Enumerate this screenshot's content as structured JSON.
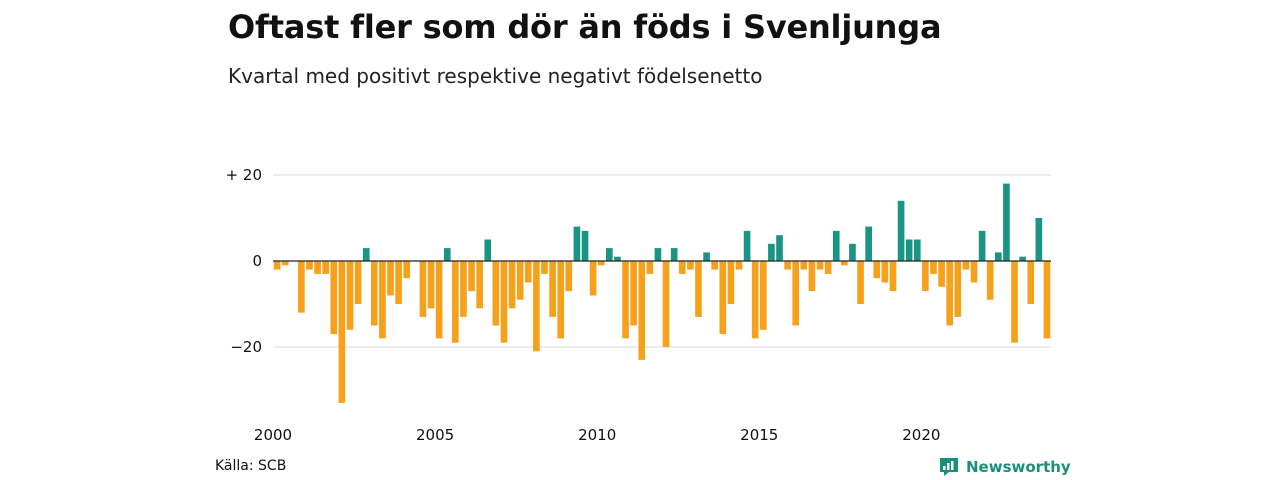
{
  "header": {
    "title": "Oftast fler som dör än föds i Svenljunga",
    "subtitle": "Kvartal med positivt respektive negativt födelsenetto"
  },
  "footer": {
    "source": "Källa: SCB",
    "brand": "Newsworthy"
  },
  "colors": {
    "positive": "#1a9584",
    "negative": "#f5a11c",
    "grid": "#d9d9d9",
    "zero_line": "#222222",
    "brand": "#1a8f7c"
  },
  "icons": {
    "brand_logo": "newsworthy-logo-icon"
  },
  "chart_data": {
    "type": "bar",
    "title": "Oftast fler som dör än föds i Svenljunga",
    "subtitle": "Kvartal med positivt respektive negativt födelsenetto",
    "xlabel": "",
    "ylabel": "",
    "x_start": "2000 Q1",
    "frequency": "quarterly",
    "ylim": [
      -35,
      22
    ],
    "y_ticks": [
      {
        "value": 20,
        "label": "+ 20"
      },
      {
        "value": 0,
        "label": "0"
      },
      {
        "value": -20,
        "label": "−20"
      }
    ],
    "x_ticks": [
      {
        "year": 2000,
        "label": "2000"
      },
      {
        "year": 2005,
        "label": "2005"
      },
      {
        "year": 2010,
        "label": "2010"
      },
      {
        "year": 2015,
        "label": "2015"
      },
      {
        "year": 2020,
        "label": "2020"
      }
    ],
    "grid": true,
    "legend": "none",
    "values": [
      -2,
      -1,
      0,
      -12,
      -2,
      -3,
      -3,
      -17,
      -33,
      -16,
      -10,
      3,
      -15,
      -18,
      -8,
      -10,
      -4,
      0,
      -13,
      -11,
      -18,
      3,
      -19,
      -13,
      -7,
      -11,
      5,
      -15,
      -19,
      -11,
      -9,
      -5,
      -21,
      -3,
      -13,
      -18,
      -7,
      8,
      7,
      -8,
      -1,
      3,
      1,
      -18,
      -15,
      -23,
      -3,
      3,
      -20,
      3,
      -3,
      -2,
      -13,
      2,
      -2,
      -17,
      -10,
      -2,
      7,
      -18,
      -16,
      4,
      6,
      -2,
      -15,
      -2,
      -7,
      -2,
      -3,
      7,
      -1,
      4,
      -10,
      8,
      -4,
      -5,
      -7,
      14,
      5,
      5,
      -7,
      -3,
      -6,
      -15,
      -13,
      -2,
      -5,
      7,
      -9,
      2,
      18,
      -19,
      1,
      -10,
      10,
      -18
    ]
  }
}
